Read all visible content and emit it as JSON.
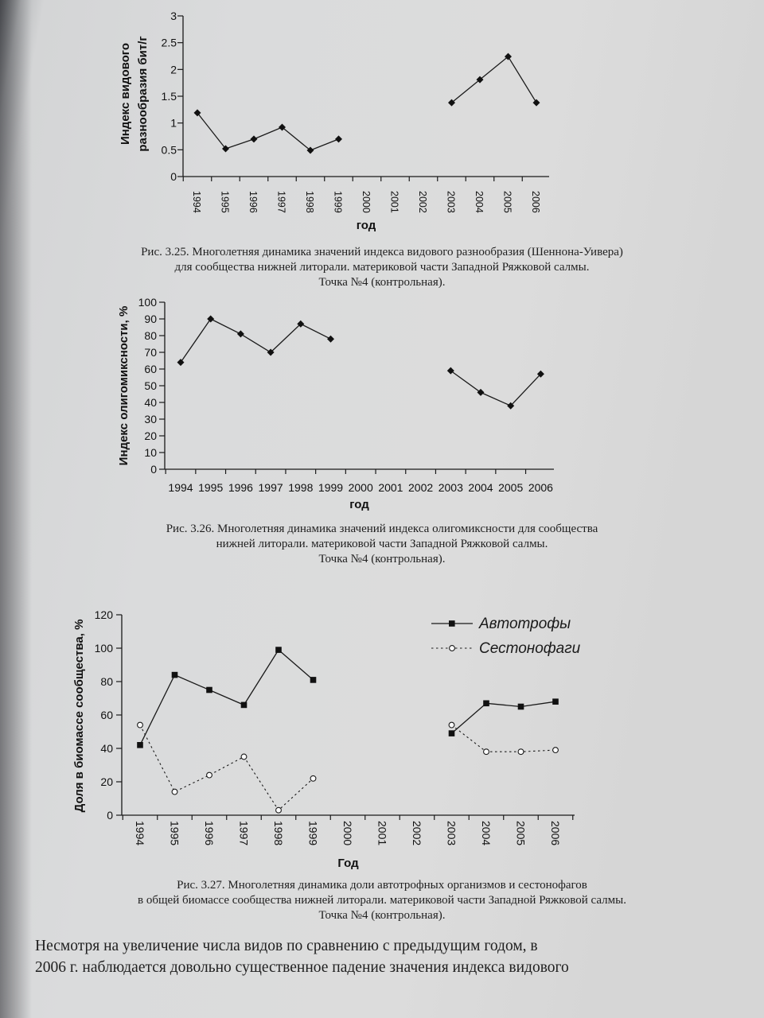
{
  "chart_data": [
    {
      "id": "fig-3-25",
      "type": "line",
      "categories": [
        "1994",
        "1995",
        "1996",
        "1997",
        "1998",
        "1999",
        "2000",
        "2001",
        "2002",
        "2003",
        "2004",
        "2005",
        "2006"
      ],
      "series": [
        {
          "values": [
            1.19,
            0.52,
            0.7,
            0.92,
            0.49,
            0.7,
            null,
            null,
            null,
            1.38,
            1.81,
            2.24,
            1.38
          ]
        }
      ],
      "xlabel": "год",
      "ylabel_lines": [
        "Индекс видового",
        "разнообразия бит/г"
      ],
      "ylim": [
        0,
        3
      ],
      "yticks": [
        "0",
        "0.5",
        "1",
        "1.5",
        "2",
        "2.5",
        "3"
      ],
      "tick_rotation": "vertical",
      "marker": "diamond",
      "grid": false
    },
    {
      "id": "fig-3-26",
      "type": "line",
      "categories": [
        "1994",
        "1995",
        "1996",
        "1997",
        "1998",
        "1999",
        "2000",
        "2001",
        "2002",
        "2003",
        "2004",
        "2005",
        "2006"
      ],
      "series": [
        {
          "values": [
            64,
            90,
            81,
            70,
            87,
            78,
            null,
            null,
            null,
            59,
            46,
            38,
            57
          ]
        }
      ],
      "xlabel": "год",
      "ylabel": "Индекс олигомиксности, %",
      "ylim": [
        0,
        100
      ],
      "yticks": [
        "0",
        "10",
        "20",
        "30",
        "40",
        "50",
        "60",
        "70",
        "80",
        "90",
        "100"
      ],
      "tick_rotation": "horizontal",
      "marker": "diamond",
      "grid": false
    },
    {
      "id": "fig-3-27",
      "type": "line",
      "categories": [
        "1994",
        "1995",
        "1996",
        "1997",
        "1998",
        "1999",
        "2000",
        "2001",
        "2002",
        "2003",
        "2004",
        "2005",
        "2006"
      ],
      "series": [
        {
          "name": "Автотрофы",
          "style": "solid",
          "marker": "square",
          "values": [
            42,
            84,
            75,
            66,
            99,
            81,
            null,
            null,
            null,
            49,
            67,
            65,
            68
          ]
        },
        {
          "name": "Сестонофаги",
          "style": "dotted",
          "marker": "circle",
          "values": [
            54,
            14,
            24,
            35,
            3,
            22,
            null,
            null,
            null,
            54,
            38,
            38,
            39
          ]
        }
      ],
      "xlabel": "Год",
      "ylabel": "Доля в биомассе сообщества, %",
      "ylim": [
        0,
        120
      ],
      "yticks": [
        "0",
        "20",
        "40",
        "60",
        "80",
        "100",
        "120"
      ],
      "tick_rotation": "vertical",
      "legend": "top-right",
      "grid": false
    }
  ],
  "captions": {
    "fig325": [
      "Рис. 3.25. Многолетняя динамика значений индекса видового разнообразия (Шеннона-Уивера)",
      "для сообщества нижней литорали. материковой части Западной Ряжковой салмы.",
      "Точка №4 (контрольная)."
    ],
    "fig326": [
      "Рис. 3.26. Многолетняя динамика значений индекса олигомиксности для сообщества",
      "нижней литорали. материковой части Западной Ряжковой салмы.",
      "Точка №4 (контрольная)."
    ],
    "fig327": [
      "Рис. 3.27. Многолетняя динамика доли автотрофных организмов и сестонофагов",
      "в общей биомассе сообщества нижней литорали. материковой части Западной Ряжковой салмы.",
      "Точка №4 (контрольная)."
    ]
  },
  "body_text": [
    "Несмотря на увеличение числа видов по сравнению с предыдущим годом, в",
    "2006 г. наблюдается довольно существенное падение значения индекса видового"
  ]
}
